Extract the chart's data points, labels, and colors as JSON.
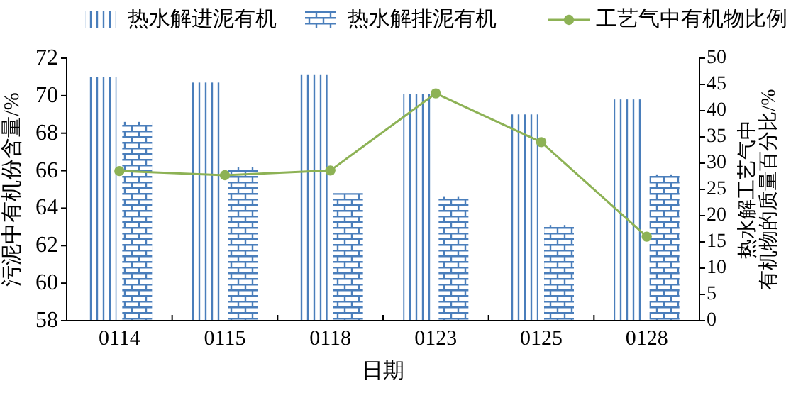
{
  "chart_data": {
    "type": "bar",
    "categories": [
      "0114",
      "0115",
      "0118",
      "0123",
      "0125",
      "0128"
    ],
    "series": [
      {
        "name": "热水解进泥有机",
        "color": "#4a7ebb",
        "values": [
          71.0,
          70.7,
          71.1,
          70.1,
          69.0,
          69.8
        ]
      },
      {
        "name": "热水解排泥有机",
        "color": "#4a7ebb",
        "values": [
          68.6,
          66.2,
          64.8,
          64.6,
          63.1,
          65.8
        ]
      },
      {
        "name": "工艺气中有机物比例",
        "type": "line",
        "axis": "y2",
        "color": "#8db255",
        "marker": "circle",
        "values": [
          28.5,
          27.7,
          28.6,
          43.3,
          34.0,
          16.0
        ]
      }
    ],
    "xlabel": "日期",
    "ylabel": "污泥中有机份含量/%",
    "y2label": "热水解工艺气中有机物的质量百分比/%",
    "ylim": [
      58,
      72
    ],
    "yticks": [
      58,
      60,
      62,
      64,
      66,
      68,
      70,
      72
    ],
    "y2lim": [
      0,
      50
    ],
    "y2ticks": [
      0,
      5,
      10,
      15,
      20,
      25,
      30,
      35,
      40,
      45,
      50
    ],
    "legend": "top",
    "grid": false
  }
}
